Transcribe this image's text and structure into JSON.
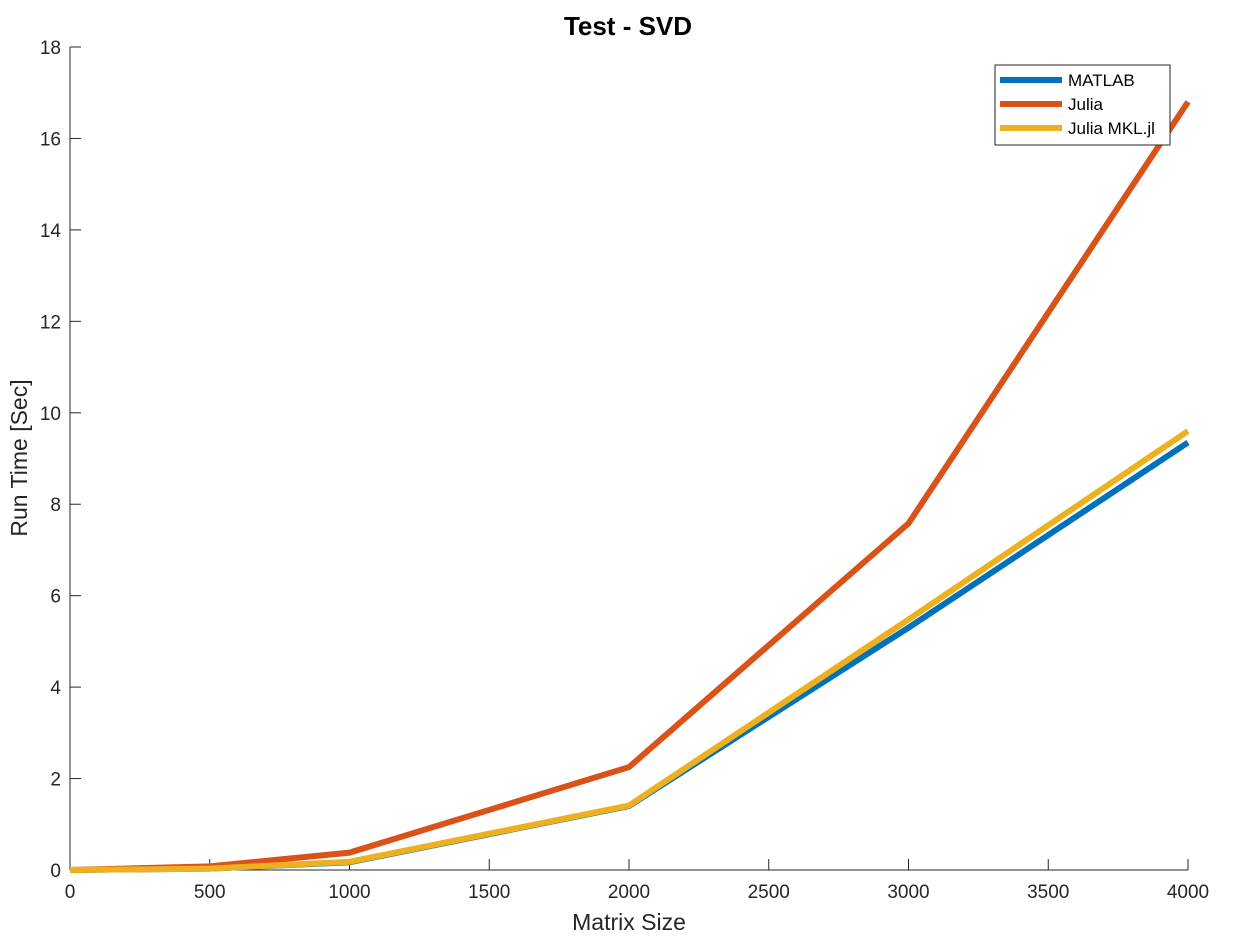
{
  "chart_data": {
    "type": "line",
    "title": "Test - SVD",
    "xlabel": "Matrix Size",
    "ylabel": "Run Time  [Sec]",
    "xlim": [
      0,
      4000
    ],
    "ylim": [
      0,
      18
    ],
    "xticks": [
      "0",
      "500",
      "1000",
      "1500",
      "2000",
      "2500",
      "3000",
      "3500",
      "4000"
    ],
    "yticks": [
      "0",
      "2",
      "4",
      "6",
      "8",
      "10",
      "12",
      "14",
      "16",
      "18"
    ],
    "grid": false,
    "legend_position": "top-right",
    "series": [
      {
        "name": "MATLAB",
        "color": "#0072BD",
        "x": [
          0,
          500,
          1000,
          2000,
          3000,
          4000
        ],
        "y": [
          0.0,
          0.03,
          0.17,
          1.4,
          5.3,
          9.35
        ]
      },
      {
        "name": "Julia",
        "color": "#D95319",
        "x": [
          0,
          500,
          1000,
          2000,
          3000,
          4000
        ],
        "y": [
          0.0,
          0.08,
          0.38,
          2.25,
          7.58,
          16.8
        ]
      },
      {
        "name": "Julia MKL.jl",
        "color": "#EDB120",
        "x": [
          0,
          500,
          1000,
          2000,
          3000,
          4000
        ],
        "y": [
          0.0,
          0.03,
          0.18,
          1.41,
          5.48,
          9.6
        ]
      }
    ]
  }
}
